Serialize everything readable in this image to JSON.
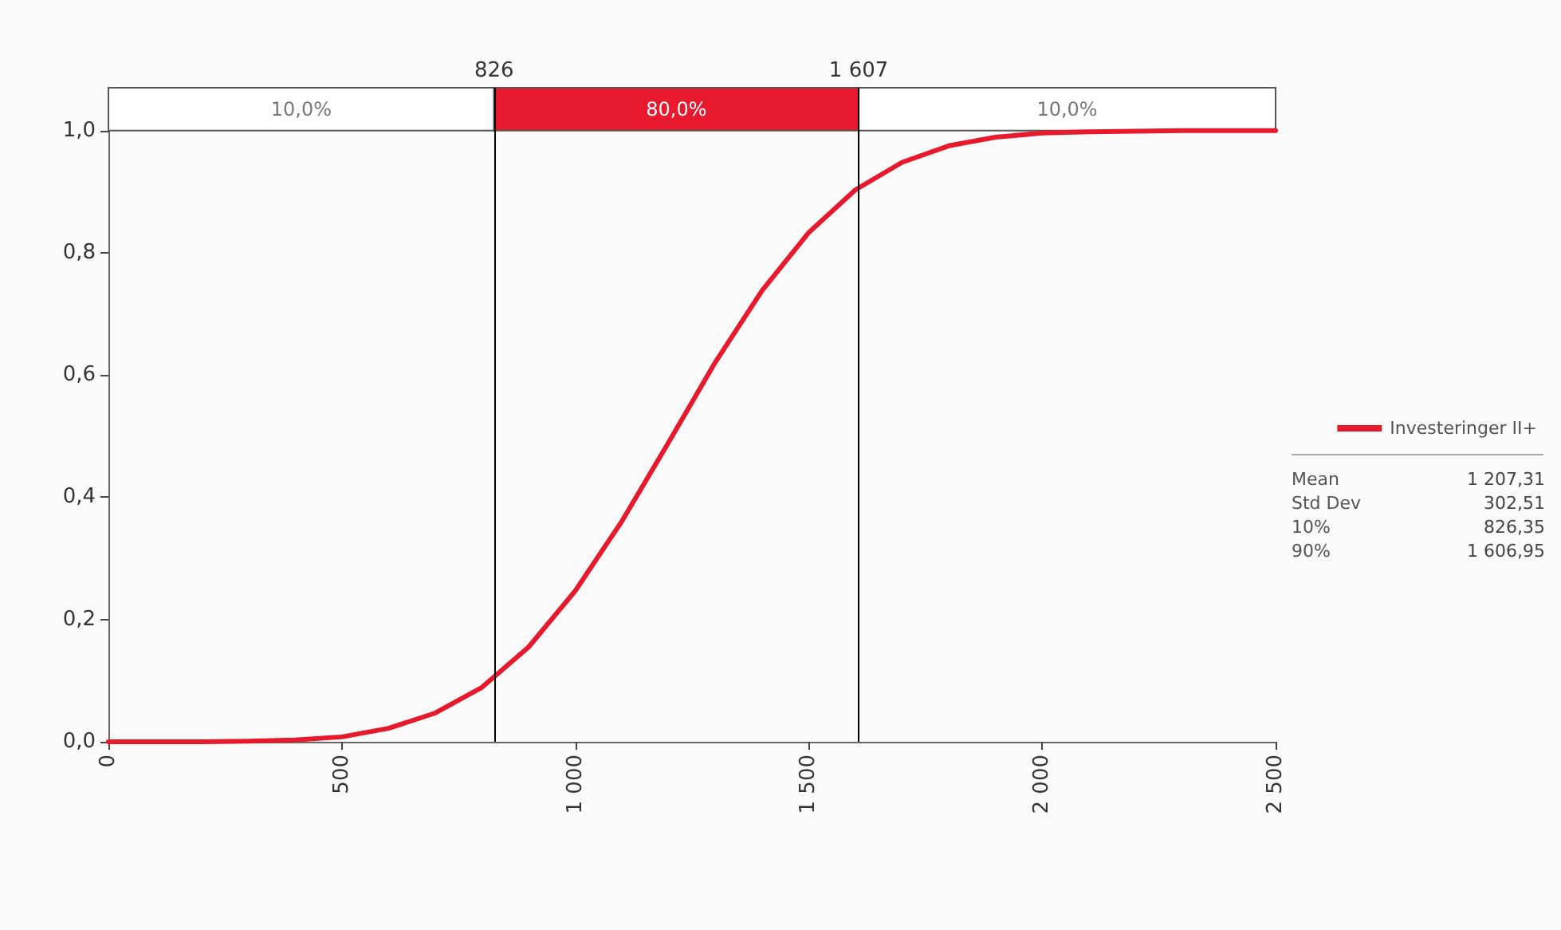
{
  "chart_data": {
    "type": "line",
    "x": [
      0,
      100,
      200,
      300,
      400,
      500,
      600,
      700,
      800,
      900,
      1000,
      1100,
      1200,
      1300,
      1400,
      1500,
      1600,
      1700,
      1800,
      1900,
      2000,
      2100,
      2200,
      2300,
      2400,
      2500
    ],
    "series": [
      {
        "name": "Investeringer II+",
        "color": "#e8192c",
        "values": [
          0,
          0,
          0,
          0.001,
          0.003,
          0.008,
          0.022,
          0.047,
          0.089,
          0.155,
          0.247,
          0.361,
          0.49,
          0.621,
          0.738,
          0.833,
          0.903,
          0.948,
          0.975,
          0.989,
          0.996,
          0.998,
          0.999,
          1,
          1,
          1
        ]
      }
    ],
    "xlim": [
      0,
      2500
    ],
    "xticks": [
      0,
      500,
      {
        "value": 1000,
        "label": "1 000"
      },
      {
        "value": 1500,
        "label": "1 500"
      },
      {
        "value": 2000,
        "label": "2 000"
      },
      {
        "value": 2500,
        "label": "2 500"
      }
    ],
    "ylim": [
      0,
      1.07
    ],
    "yticks": [
      {
        "value": 0,
        "label": "0,0"
      },
      {
        "value": 0.2,
        "label": "0,2"
      },
      {
        "value": 0.4,
        "label": "0,4"
      },
      {
        "value": 0.6,
        "label": "0,6"
      },
      {
        "value": 0.8,
        "label": "0,8"
      },
      {
        "value": 1,
        "label": "1,0"
      }
    ],
    "ref_lines": [
      {
        "axis": "x",
        "value": 826,
        "label": "826",
        "color": "#000000"
      },
      {
        "axis": "x",
        "value": 1607,
        "label": "1 607",
        "color": "#000000"
      }
    ],
    "bands": [
      {
        "axis": "x",
        "from": 0,
        "to": 826,
        "label": "10,0%",
        "color": "#ffffff"
      },
      {
        "axis": "x",
        "from": 826,
        "to": 1607,
        "label": "80,0%",
        "color": "#e8192c"
      },
      {
        "axis": "x",
        "from": 1607,
        "to": 2500,
        "label": "10,0%",
        "color": "#ffffff"
      }
    ],
    "annotations": [
      "Mean",
      "1 207,31",
      "Std Dev",
      "302,51",
      "10%",
      "826,35",
      "90%",
      "1 606,95"
    ],
    "grid": false,
    "legend": "right",
    "marker": "none",
    "line_style": "solid"
  }
}
